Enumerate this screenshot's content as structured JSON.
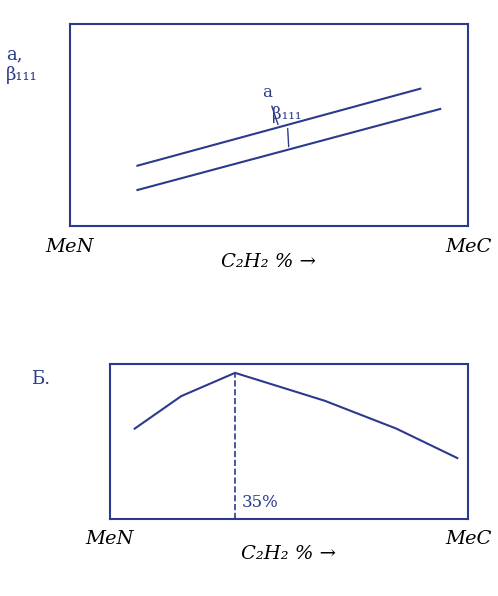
{
  "chart_data": [
    {
      "type": "line",
      "y_label": "a,\nβ₁₁₁",
      "x_label": "C₂H₂ % →",
      "xlim": [
        0,
        100
      ],
      "xticks": [
        {
          "value": 0,
          "label": "MeN"
        },
        {
          "value": 100,
          "label": "MeC"
        }
      ],
      "ylim": [
        0,
        10
      ],
      "yticks": [],
      "tick_labels": "x",
      "series": [
        {
          "name": "a",
          "color": "#2b3a8c",
          "x": [
            17,
            88
          ],
          "values": [
            3.0,
            6.8
          ]
        },
        {
          "name": "β₁₁₁",
          "color": "#2b3a8c",
          "x": [
            17,
            93
          ],
          "values": [
            1.8,
            5.8
          ]
        }
      ]
    },
    {
      "type": "line",
      "y_label": "Б.",
      "x_label": "C₂H₂ % →",
      "xlim": [
        0,
        100
      ],
      "xticks": [
        {
          "value": 0,
          "label": "MeN"
        },
        {
          "value": 100,
          "label": "MeC"
        }
      ],
      "ylim": [
        0,
        10
      ],
      "yticks": [],
      "tick_labels": "x",
      "series": [
        {
          "color": "#2b3a8c",
          "x": [
            7,
            20,
            35,
            60,
            80,
            97
          ],
          "values": [
            5.8,
            7.9,
            9.4,
            7.6,
            5.8,
            3.9
          ]
        }
      ],
      "annotations": [
        {
          "x": 35,
          "text": "35%"
        }
      ]
    }
  ]
}
